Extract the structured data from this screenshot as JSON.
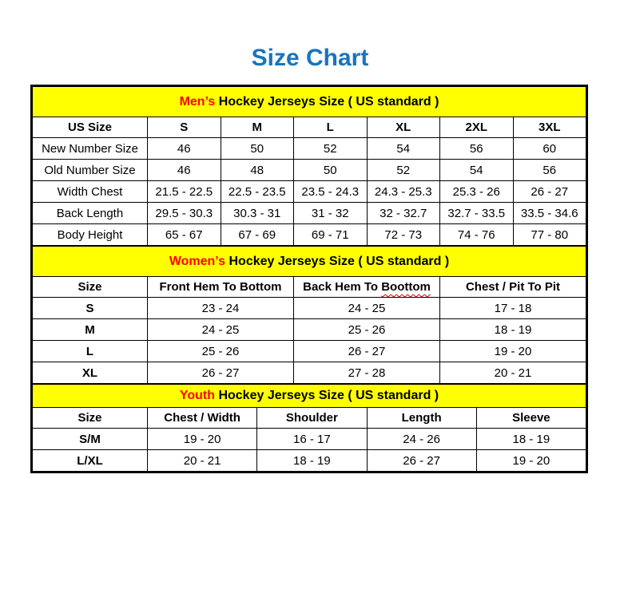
{
  "page": {
    "title": "Size Chart"
  },
  "colors": {
    "title_blue": "#1874bc",
    "band_yellow": "#ffff00",
    "accent_red": "#ff0000",
    "squiggle_red": "#d40000",
    "border_black": "#000000"
  },
  "tables": [
    {
      "id": "mens",
      "banner": {
        "highlight": "Men’s",
        "rest": " Hockey Jerseys Size ( US standard )"
      },
      "header": [
        {
          "text": "US Size"
        },
        {
          "text": "S"
        },
        {
          "text": "M"
        },
        {
          "text": "L"
        },
        {
          "text": "XL"
        },
        {
          "text": "2XL"
        },
        {
          "text": "3XL"
        }
      ],
      "rows": [
        {
          "label": "New Number Size",
          "values": [
            "46",
            "50",
            "52",
            "54",
            "56",
            "60"
          ]
        },
        {
          "label": "Old Number Size",
          "values": [
            "46",
            "48",
            "50",
            "52",
            "54",
            "56"
          ]
        },
        {
          "label": "Width Chest",
          "values": [
            "21.5 - 22.5",
            "22.5 - 23.5",
            "23.5 - 24.3",
            "24.3 - 25.3",
            "25.3 - 26",
            "26 - 27"
          ]
        },
        {
          "label": "Back Length",
          "values": [
            "29.5 - 30.3",
            "30.3 - 31",
            "31 - 32",
            "32 - 32.7",
            "32.7 - 33.5",
            "33.5 - 34.6"
          ]
        },
        {
          "label": "Body Height",
          "values": [
            "65 - 67",
            "67 - 69",
            "69 - 71",
            "72 - 73",
            "74 - 76",
            "77 - 80"
          ]
        }
      ]
    },
    {
      "id": "womens",
      "banner": {
        "highlight": "Women’s",
        "rest": " Hockey Jerseys Size ( US standard )"
      },
      "header": [
        {
          "text": "Size"
        },
        {
          "text": "Front Hem To Bottom"
        },
        {
          "pre": "Back Hem To ",
          "squiggle": "Boottom"
        },
        {
          "text": "Chest / Pit To Pit"
        }
      ],
      "rows": [
        {
          "label": "S",
          "values": [
            "23 - 24",
            "24 - 25",
            "17 - 18"
          ]
        },
        {
          "label": "M",
          "values": [
            "24 - 25",
            "25 - 26",
            "18 - 19"
          ]
        },
        {
          "label": "L",
          "values": [
            "25 - 26",
            "26 - 27",
            "19 - 20"
          ]
        },
        {
          "label": "XL",
          "values": [
            "26 - 27",
            "27 - 28",
            "20 - 21"
          ]
        }
      ]
    },
    {
      "id": "youth",
      "banner": {
        "highlight": "Youth",
        "rest": " Hockey Jerseys Size ( US standard )"
      },
      "header": [
        {
          "text": "Size"
        },
        {
          "text": "Chest / Width"
        },
        {
          "text": "Shoulder"
        },
        {
          "text": "Length"
        },
        {
          "text": "Sleeve"
        }
      ],
      "rows": [
        {
          "label": "S/M",
          "values": [
            "19 - 20",
            "16 - 17",
            "24 - 26",
            "18 - 19"
          ]
        },
        {
          "label": "L/XL",
          "values": [
            "20 - 21",
            "18 - 19",
            "26 - 27",
            "19 - 20"
          ]
        }
      ]
    }
  ]
}
